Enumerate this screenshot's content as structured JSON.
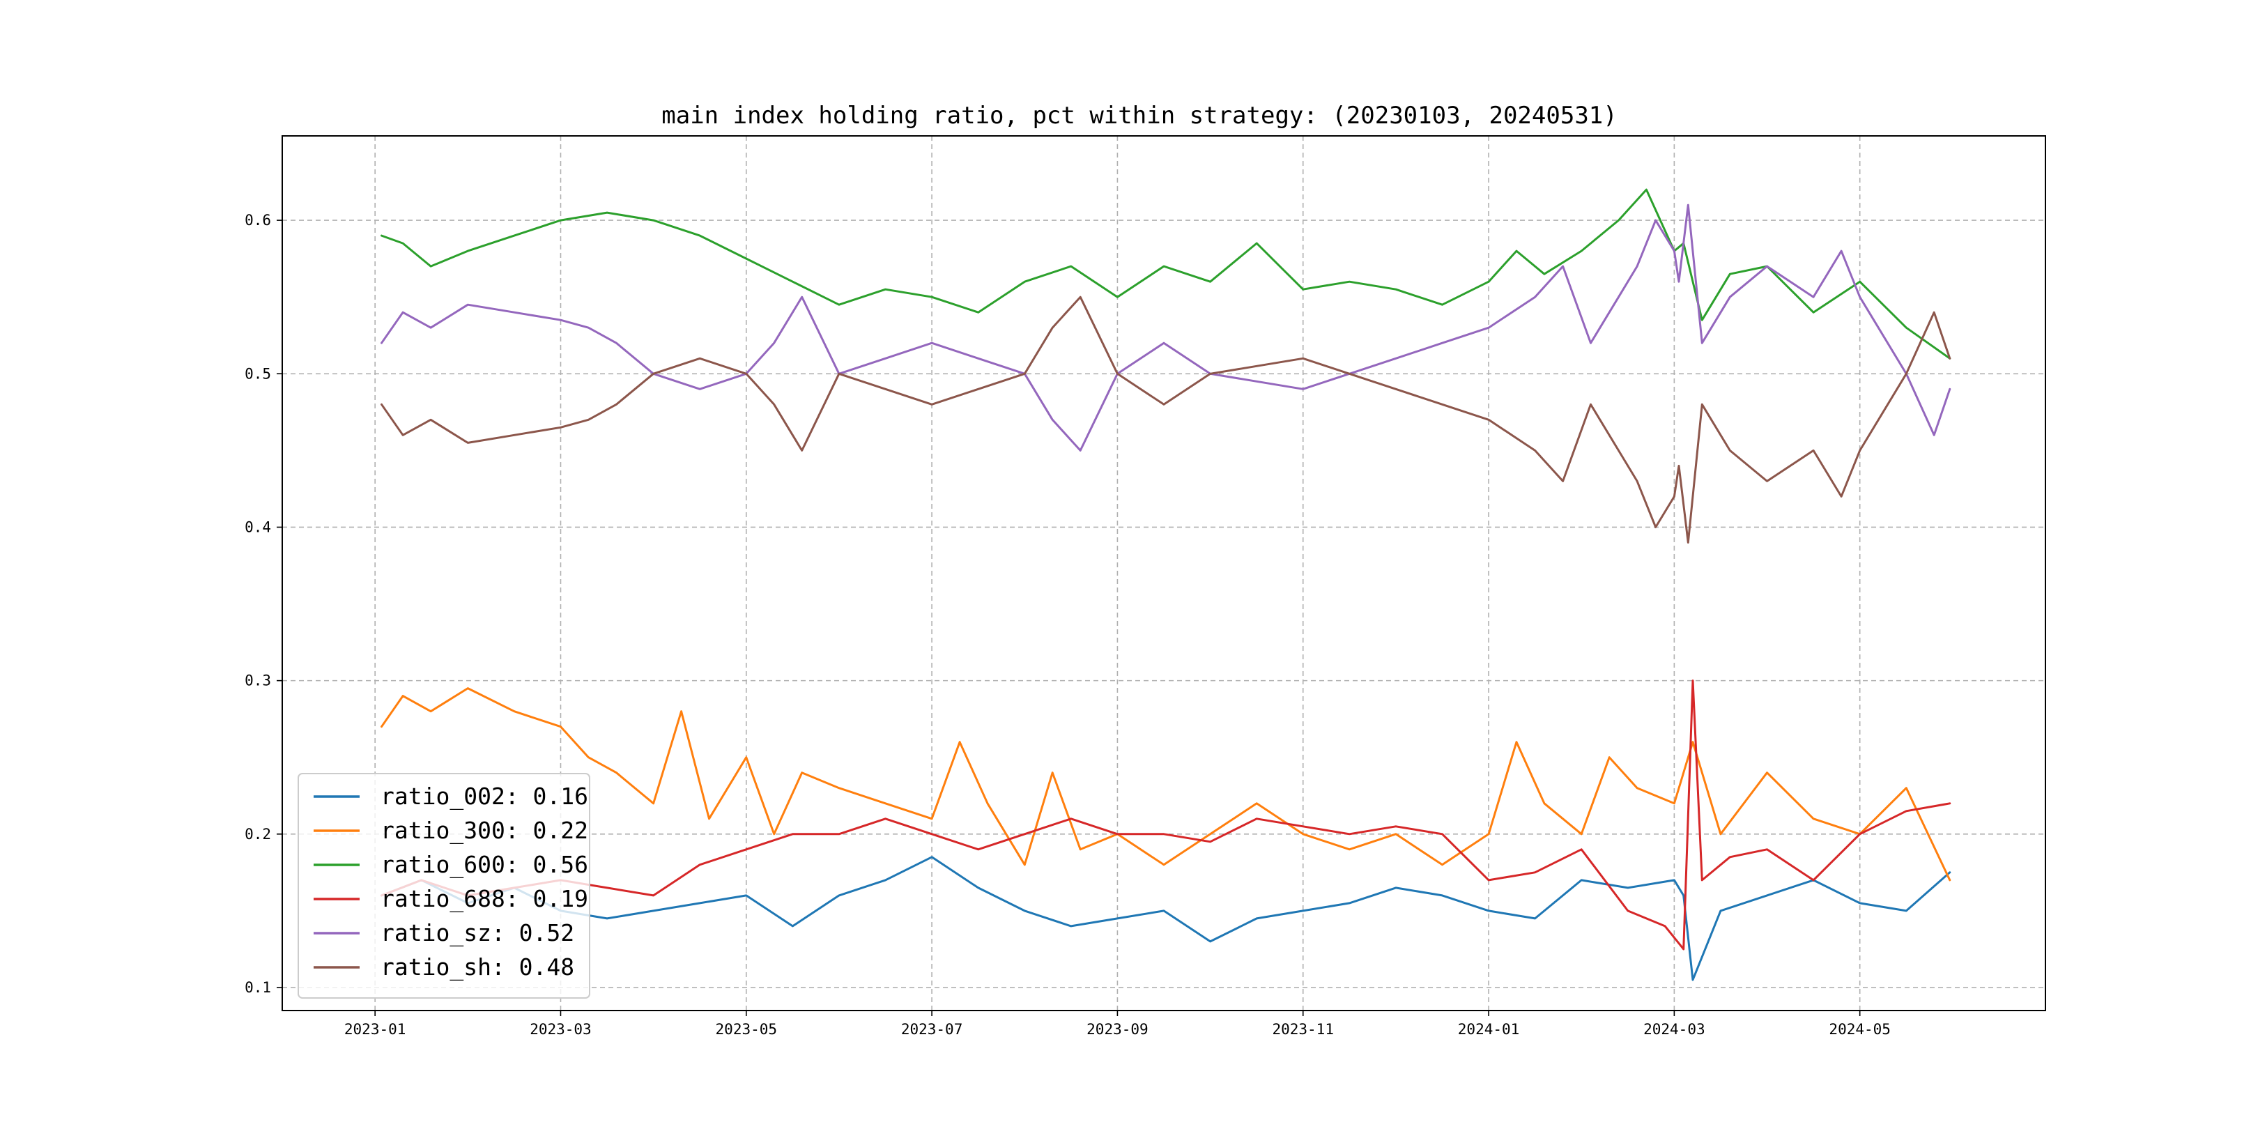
{
  "chart_data": {
    "type": "line",
    "title": "main index holding ratio, pct within strategy: (20230103, 20240531)",
    "xlabel": "",
    "ylabel": "",
    "grid": true,
    "legend_position": "lower-left",
    "x_axis": {
      "unit": "months since 2023-01-01",
      "range": [
        -1.0,
        18.0
      ],
      "ticks": [
        0,
        2,
        4,
        6,
        8,
        10,
        12,
        14,
        16
      ],
      "tick_labels": [
        "2023-01",
        "2023-03",
        "2023-05",
        "2023-07",
        "2023-09",
        "2023-11",
        "2024-01",
        "2024-03",
        "2024-05"
      ]
    },
    "y_axis": {
      "range": [
        0.085,
        0.655
      ],
      "ticks": [
        0.1,
        0.2,
        0.3,
        0.4,
        0.5,
        0.6
      ],
      "tick_labels": [
        "0.1",
        "0.2",
        "0.3",
        "0.4",
        "0.5",
        "0.6"
      ]
    },
    "series": [
      {
        "name": "ratio_002",
        "legend_label": "ratio_002: 0.16",
        "color": "#1f77b4",
        "x": [
          0.07,
          0.5,
          1.0,
          1.5,
          2.0,
          2.5,
          3.0,
          3.5,
          4.0,
          4.5,
          5.0,
          5.5,
          6.0,
          6.5,
          7.0,
          7.5,
          8.0,
          8.5,
          9.0,
          9.5,
          10.0,
          10.5,
          11.0,
          11.5,
          12.0,
          12.5,
          13.0,
          13.5,
          14.0,
          14.1,
          14.2,
          14.5,
          15.0,
          15.5,
          16.0,
          16.5,
          16.97
        ],
        "y": [
          0.16,
          0.17,
          0.155,
          0.165,
          0.15,
          0.145,
          0.15,
          0.155,
          0.16,
          0.14,
          0.16,
          0.17,
          0.185,
          0.165,
          0.15,
          0.14,
          0.145,
          0.15,
          0.13,
          0.145,
          0.15,
          0.155,
          0.165,
          0.16,
          0.15,
          0.145,
          0.17,
          0.165,
          0.17,
          0.16,
          0.105,
          0.15,
          0.16,
          0.17,
          0.155,
          0.15,
          0.175
        ]
      },
      {
        "name": "ratio_300",
        "legend_label": "ratio_300: 0.22",
        "color": "#ff7f0e",
        "x": [
          0.07,
          0.3,
          0.6,
          1.0,
          1.5,
          2.0,
          2.3,
          2.6,
          3.0,
          3.3,
          3.6,
          4.0,
          4.3,
          4.6,
          5.0,
          5.5,
          6.0,
          6.3,
          6.6,
          7.0,
          7.3,
          7.6,
          8.0,
          8.5,
          9.0,
          9.5,
          10.0,
          10.5,
          11.0,
          11.5,
          12.0,
          12.3,
          12.6,
          13.0,
          13.3,
          13.6,
          14.0,
          14.2,
          14.5,
          15.0,
          15.5,
          16.0,
          16.5,
          16.97
        ],
        "y": [
          0.27,
          0.29,
          0.28,
          0.295,
          0.28,
          0.27,
          0.25,
          0.24,
          0.22,
          0.28,
          0.21,
          0.25,
          0.2,
          0.24,
          0.23,
          0.22,
          0.21,
          0.26,
          0.22,
          0.18,
          0.24,
          0.19,
          0.2,
          0.18,
          0.2,
          0.22,
          0.2,
          0.19,
          0.2,
          0.18,
          0.2,
          0.26,
          0.22,
          0.2,
          0.25,
          0.23,
          0.22,
          0.26,
          0.2,
          0.24,
          0.21,
          0.2,
          0.23,
          0.17
        ]
      },
      {
        "name": "ratio_600",
        "legend_label": "ratio_600: 0.56",
        "color": "#2ca02c",
        "x": [
          0.07,
          0.3,
          0.6,
          1.0,
          1.5,
          2.0,
          2.5,
          3.0,
          3.5,
          4.0,
          4.5,
          5.0,
          5.5,
          6.0,
          6.5,
          7.0,
          7.5,
          8.0,
          8.5,
          9.0,
          9.5,
          10.0,
          10.5,
          11.0,
          11.5,
          12.0,
          12.3,
          12.6,
          13.0,
          13.4,
          13.7,
          14.0,
          14.1,
          14.3,
          14.6,
          15.0,
          15.5,
          16.0,
          16.5,
          16.97
        ],
        "y": [
          0.59,
          0.585,
          0.57,
          0.58,
          0.59,
          0.6,
          0.605,
          0.6,
          0.59,
          0.575,
          0.56,
          0.545,
          0.555,
          0.55,
          0.54,
          0.56,
          0.57,
          0.55,
          0.57,
          0.56,
          0.585,
          0.555,
          0.56,
          0.555,
          0.545,
          0.56,
          0.58,
          0.565,
          0.58,
          0.6,
          0.62,
          0.58,
          0.585,
          0.535,
          0.565,
          0.57,
          0.54,
          0.56,
          0.53,
          0.51
        ]
      },
      {
        "name": "ratio_688",
        "legend_label": "ratio_688: 0.19",
        "color": "#d62728",
        "x": [
          0.07,
          0.5,
          1.0,
          1.5,
          2.0,
          2.5,
          3.0,
          3.5,
          4.0,
          4.5,
          5.0,
          5.5,
          6.0,
          6.5,
          7.0,
          7.5,
          8.0,
          8.5,
          9.0,
          9.5,
          10.0,
          10.5,
          11.0,
          11.5,
          12.0,
          12.5,
          13.0,
          13.5,
          13.9,
          14.1,
          14.2,
          14.3,
          14.6,
          15.0,
          15.5,
          16.0,
          16.5,
          16.97
        ],
        "y": [
          0.16,
          0.17,
          0.16,
          0.165,
          0.17,
          0.165,
          0.16,
          0.18,
          0.19,
          0.2,
          0.2,
          0.21,
          0.2,
          0.19,
          0.2,
          0.21,
          0.2,
          0.2,
          0.195,
          0.21,
          0.205,
          0.2,
          0.205,
          0.2,
          0.17,
          0.175,
          0.19,
          0.15,
          0.14,
          0.125,
          0.3,
          0.17,
          0.185,
          0.19,
          0.17,
          0.2,
          0.215,
          0.22
        ]
      },
      {
        "name": "ratio_sz",
        "legend_label": "ratio_sz: 0.52",
        "color": "#9467bd",
        "x": [
          0.07,
          0.3,
          0.6,
          1.0,
          1.5,
          2.0,
          2.3,
          2.6,
          3.0,
          3.5,
          4.0,
          4.3,
          4.6,
          5.0,
          5.5,
          6.0,
          6.5,
          7.0,
          7.3,
          7.6,
          8.0,
          8.5,
          9.0,
          9.5,
          10.0,
          10.5,
          11.0,
          11.5,
          12.0,
          12.5,
          12.8,
          13.1,
          13.4,
          13.6,
          13.8,
          14.0,
          14.05,
          14.15,
          14.3,
          14.6,
          15.0,
          15.5,
          15.8,
          16.0,
          16.5,
          16.8,
          16.97
        ],
        "y": [
          0.52,
          0.54,
          0.53,
          0.545,
          0.54,
          0.535,
          0.53,
          0.52,
          0.5,
          0.49,
          0.5,
          0.52,
          0.55,
          0.5,
          0.51,
          0.52,
          0.51,
          0.5,
          0.47,
          0.45,
          0.5,
          0.52,
          0.5,
          0.495,
          0.49,
          0.5,
          0.51,
          0.52,
          0.53,
          0.55,
          0.57,
          0.52,
          0.55,
          0.57,
          0.6,
          0.58,
          0.56,
          0.61,
          0.52,
          0.55,
          0.57,
          0.55,
          0.58,
          0.55,
          0.5,
          0.46,
          0.49
        ]
      },
      {
        "name": "ratio_sh",
        "legend_label": "ratio_sh: 0.48",
        "color": "#8c564b",
        "x": [
          0.07,
          0.3,
          0.6,
          1.0,
          1.5,
          2.0,
          2.3,
          2.6,
          3.0,
          3.5,
          4.0,
          4.3,
          4.6,
          5.0,
          5.5,
          6.0,
          6.5,
          7.0,
          7.3,
          7.6,
          8.0,
          8.5,
          9.0,
          9.5,
          10.0,
          10.5,
          11.0,
          11.5,
          12.0,
          12.5,
          12.8,
          13.1,
          13.4,
          13.6,
          13.8,
          14.0,
          14.05,
          14.15,
          14.3,
          14.6,
          15.0,
          15.5,
          15.8,
          16.0,
          16.5,
          16.8,
          16.97
        ],
        "y": [
          0.48,
          0.46,
          0.47,
          0.455,
          0.46,
          0.465,
          0.47,
          0.48,
          0.5,
          0.51,
          0.5,
          0.48,
          0.45,
          0.5,
          0.49,
          0.48,
          0.49,
          0.5,
          0.53,
          0.55,
          0.5,
          0.48,
          0.5,
          0.505,
          0.51,
          0.5,
          0.49,
          0.48,
          0.47,
          0.45,
          0.43,
          0.48,
          0.45,
          0.43,
          0.4,
          0.42,
          0.44,
          0.39,
          0.48,
          0.45,
          0.43,
          0.45,
          0.42,
          0.45,
          0.5,
          0.54,
          0.51
        ]
      }
    ]
  }
}
